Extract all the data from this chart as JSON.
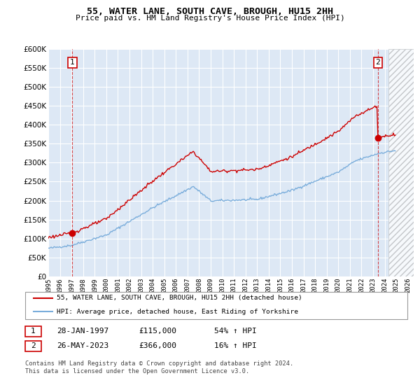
{
  "title": "55, WATER LANE, SOUTH CAVE, BROUGH, HU15 2HH",
  "subtitle": "Price paid vs. HM Land Registry's House Price Index (HPI)",
  "ylim": [
    0,
    600000
  ],
  "yticks": [
    0,
    50000,
    100000,
    150000,
    200000,
    250000,
    300000,
    350000,
    400000,
    450000,
    500000,
    550000,
    600000
  ],
  "xlim_start": 1995.0,
  "xlim_end": 2026.5,
  "background_color": "#ffffff",
  "plot_bg_color": "#dde8f5",
  "grid_color": "#ffffff",
  "hatch_start": 2024.33,
  "sale1_date": 1997.08,
  "sale1_price": 115000,
  "sale2_date": 2023.41,
  "sale2_price": 366000,
  "red_line_color": "#cc0000",
  "blue_line_color": "#7aaddb",
  "dashed_line_color": "#cc0000",
  "legend_label_red": "55, WATER LANE, SOUTH CAVE, BROUGH, HU15 2HH (detached house)",
  "legend_label_blue": "HPI: Average price, detached house, East Riding of Yorkshire",
  "table_row1": [
    "1",
    "28-JAN-1997",
    "£115,000",
    "54% ↑ HPI"
  ],
  "table_row2": [
    "2",
    "26-MAY-2023",
    "£366,000",
    "16% ↑ HPI"
  ],
  "footer": "Contains HM Land Registry data © Crown copyright and database right 2024.\nThis data is licensed under the Open Government Licence v3.0."
}
